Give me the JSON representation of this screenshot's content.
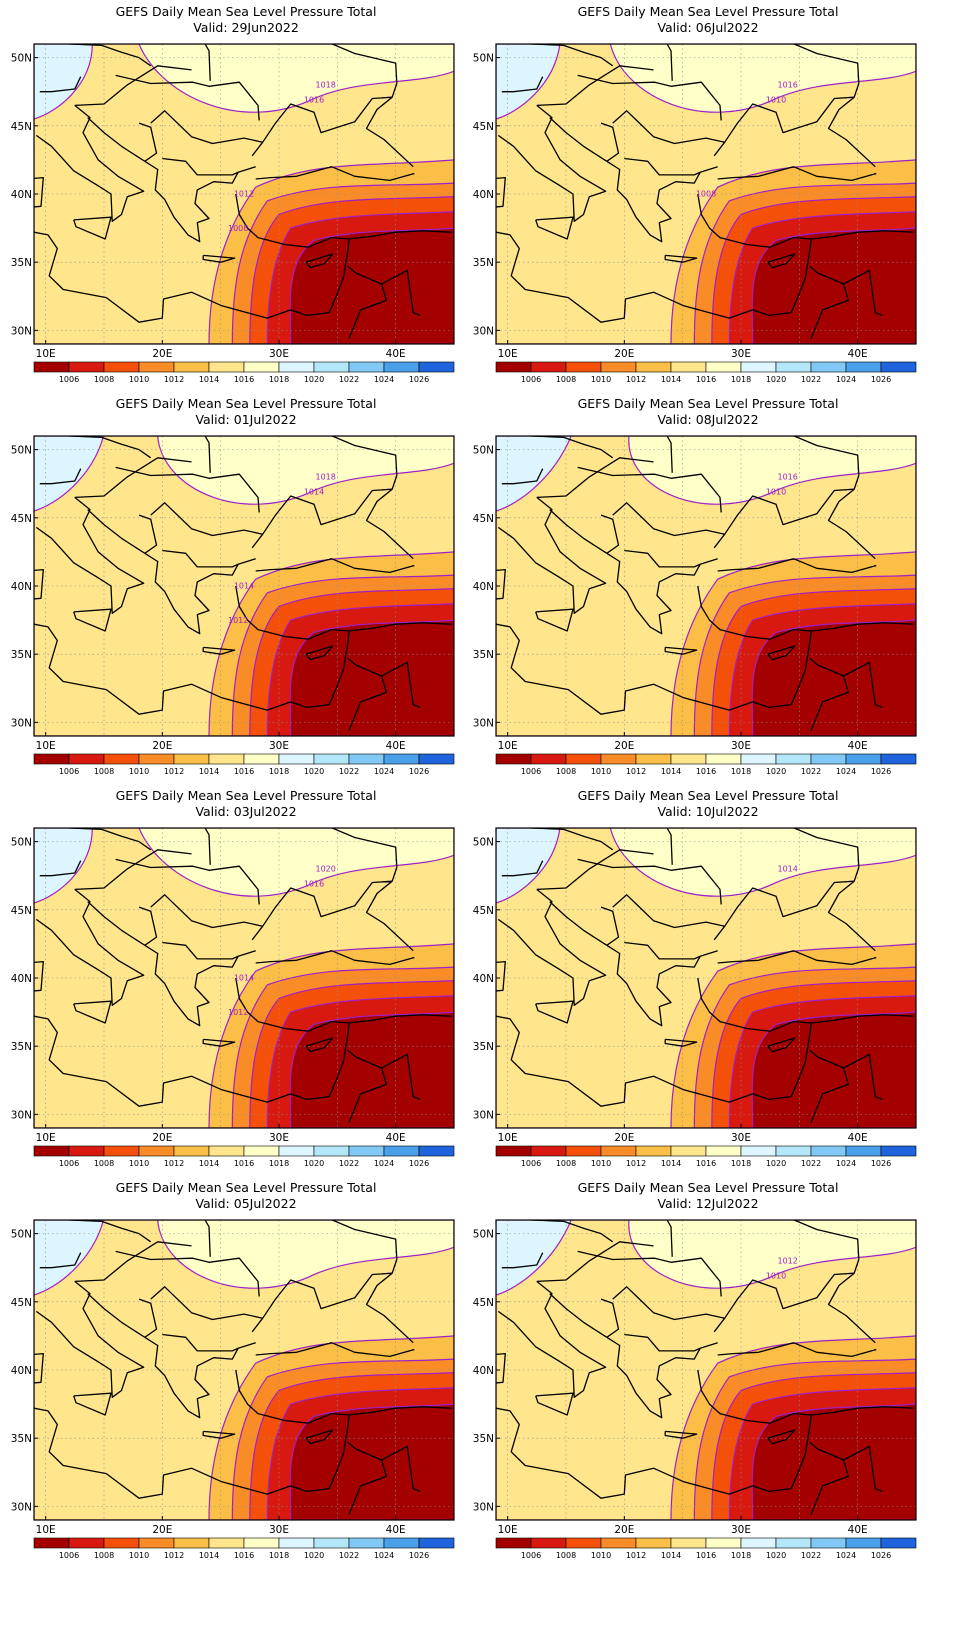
{
  "product": "GEFS Daily Mean Sea Level Pressure Total",
  "panels": [
    {
      "title": "GEFS Daily Mean Sea Level Pressure Total",
      "valid": "Valid: 29Jun2022",
      "contour_labels": [
        "1018",
        "1016",
        "1012",
        "1008"
      ]
    },
    {
      "title": "GEFS Daily Mean Sea Level Pressure Total",
      "valid": "Valid: 06Jul2022",
      "contour_labels": [
        "1016",
        "1010",
        "1008"
      ]
    },
    {
      "title": "GEFS Daily Mean Sea Level Pressure Total",
      "valid": "Valid: 01Jul2022",
      "contour_labels": [
        "1018",
        "1014",
        "1014",
        "1012"
      ]
    },
    {
      "title": "GEFS Daily Mean Sea Level Pressure Total",
      "valid": "Valid: 08Jul2022",
      "contour_labels": [
        "1016",
        "1010"
      ]
    },
    {
      "title": "GEFS Daily Mean Sea Level Pressure Total",
      "valid": "Valid: 03Jul2022",
      "contour_labels": [
        "1020",
        "1016",
        "1014",
        "1012"
      ]
    },
    {
      "title": "GEFS Daily Mean Sea Level Pressure Total",
      "valid": "Valid: 10Jul2022",
      "contour_labels": [
        "1014"
      ]
    },
    {
      "title": "GEFS Daily Mean Sea Level Pressure Total",
      "valid": "Valid: 05Jul2022",
      "contour_labels": []
    },
    {
      "title": "GEFS Daily Mean Sea Level Pressure Total",
      "valid": "Valid: 12Jul2022",
      "contour_labels": [
        "1012",
        "1010"
      ]
    }
  ],
  "axes": {
    "lon_labels": [
      "10E",
      "20E",
      "30E",
      "40E"
    ],
    "lat_labels": [
      "50N",
      "45N",
      "40N",
      "35N",
      "30N"
    ]
  },
  "colorbar": {
    "labels": [
      "1006",
      "1008",
      "1010",
      "1012",
      "1014",
      "1016",
      "1018",
      "1020",
      "1022",
      "1024",
      "1026"
    ],
    "colors": [
      "#a50000",
      "#d7190f",
      "#f5500a",
      "#fa8c28",
      "#fbbe46",
      "#ffe68c",
      "#ffffc8",
      "#dcf5ff",
      "#b4e6fa",
      "#82c8f5",
      "#4ba0eb",
      "#1e64dc"
    ]
  },
  "colors": {
    "contour": "#a020c8",
    "land_border": "#000000",
    "grid": "#909090"
  }
}
